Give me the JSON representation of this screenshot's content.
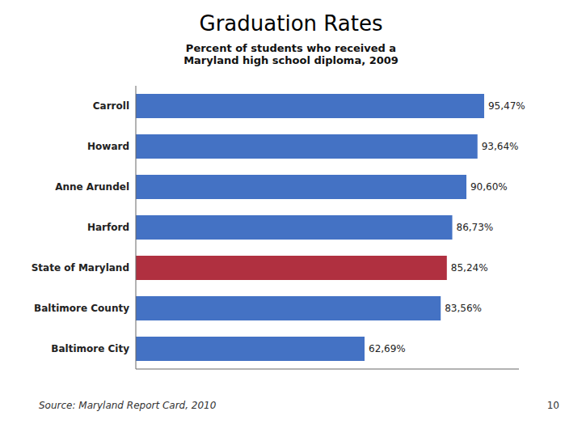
{
  "chart_data": {
    "type": "bar",
    "title": "Graduation Rates",
    "subtitle": "Percent of students who received a\nMaryland high school diploma, 2009",
    "categories": [
      "Carroll",
      "Howard",
      "Anne Arundel",
      "Harford",
      "State of Maryland",
      "Baltimore County",
      "Baltimore City"
    ],
    "values": [
      95.47,
      93.64,
      90.6,
      86.73,
      85.24,
      83.56,
      62.69
    ],
    "value_labels": [
      "95,47%",
      "93,64%",
      "90,60%",
      "86,73%",
      "85,24%",
      "83,56%",
      "62,69%"
    ],
    "colors": [
      "#4472C4",
      "#4472C4",
      "#4472C4",
      "#4472C4",
      "#B03040",
      "#4472C4",
      "#4472C4"
    ],
    "orientation": "horizontal",
    "xlim": [
      0,
      105
    ],
    "tick_labels": "y",
    "data_labels": true,
    "grid": false,
    "annotations": [
      "Source: Maryland Report Card, 2010",
      "10"
    ]
  }
}
